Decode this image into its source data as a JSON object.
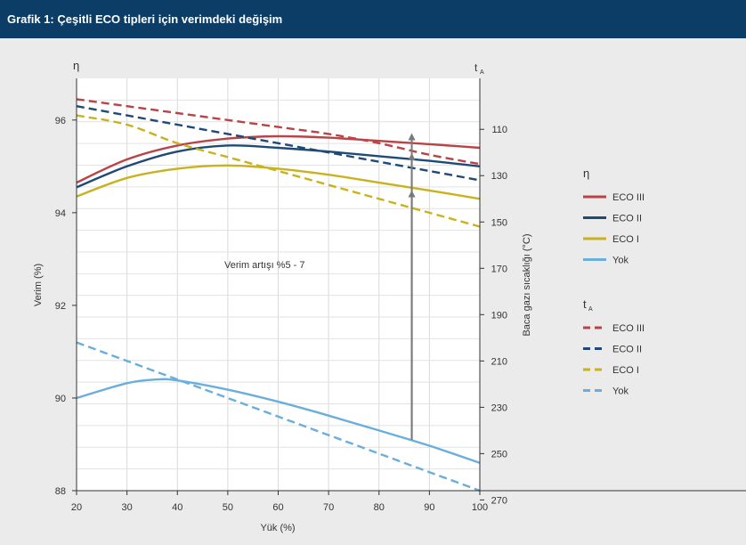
{
  "header": {
    "title": "Grafik 1: Çeşitli ECO tipleri için verimdeki değişim"
  },
  "chart_data": {
    "type": "line",
    "xlabel": "Yük (%)",
    "ylabel": "Verim (%)",
    "y2label": "Baca gazı sıcaklığı (°C)",
    "left_axis_symbol": "η",
    "right_axis_symbol": "t",
    "right_axis_symbol_sub": "A",
    "xlim": [
      20,
      100
    ],
    "ylim": [
      88,
      96.9
    ],
    "y2lim": [
      88.0,
      266.0
    ],
    "y2_reversed": true,
    "x_ticks": [
      20,
      30,
      40,
      50,
      60,
      70,
      80,
      90,
      100
    ],
    "y_ticks": [
      88,
      90,
      92,
      94,
      96
    ],
    "y2_ticks": [
      110,
      130,
      150,
      170,
      190,
      210,
      230,
      250,
      270
    ],
    "grid": true,
    "annotation": "Verim artışı %5 - 7",
    "annotation_x": 86.5,
    "annotation_arrows": [
      {
        "to": 94.45
      },
      {
        "to": 95.25
      },
      {
        "to": 95.68
      }
    ],
    "annotation_base": 89.1,
    "legend": {
      "placement": "right",
      "groups": [
        {
          "title": "η",
          "style": "solid",
          "entries": [
            "ECO III",
            "ECO II",
            "ECO I",
            "Yok"
          ]
        },
        {
          "title": "t",
          "title_sub": "A",
          "style": "dashed",
          "entries": [
            "ECO III",
            "ECO II",
            "ECO I",
            "Yok"
          ]
        }
      ]
    },
    "colors": {
      "ECO III": "#b84447",
      "ECO II": "#1f4a78",
      "ECO I": "#c8b21e",
      "Yok": "#6aaedb"
    },
    "series": [
      {
        "name": "ECO III",
        "axis": "left",
        "style": "solid",
        "x": [
          20,
          30,
          40,
          50,
          60,
          70,
          80,
          90,
          100
        ],
        "y": [
          94.65,
          95.15,
          95.45,
          95.6,
          95.65,
          95.62,
          95.55,
          95.48,
          95.4
        ]
      },
      {
        "name": "ECO II",
        "axis": "left",
        "style": "solid",
        "x": [
          20,
          30,
          40,
          50,
          60,
          70,
          80,
          90,
          100
        ],
        "y": [
          94.55,
          95.0,
          95.32,
          95.45,
          95.4,
          95.32,
          95.22,
          95.12,
          95.0
        ]
      },
      {
        "name": "ECO I",
        "axis": "left",
        "style": "solid",
        "x": [
          20,
          30,
          40,
          50,
          60,
          70,
          80,
          90,
          100
        ],
        "y": [
          94.35,
          94.75,
          94.95,
          95.02,
          94.95,
          94.82,
          94.65,
          94.48,
          94.3
        ]
      },
      {
        "name": "Yok",
        "axis": "left",
        "style": "solid",
        "x": [
          20,
          30,
          36,
          40,
          50,
          60,
          70,
          80,
          90,
          100
        ],
        "y": [
          90.0,
          90.32,
          90.4,
          90.38,
          90.18,
          89.92,
          89.62,
          89.3,
          88.97,
          88.6
        ]
      },
      {
        "name": "ECO III",
        "axis": "right",
        "style": "dashed",
        "x": [
          20,
          30,
          40,
          50,
          60,
          70,
          80,
          90,
          100
        ],
        "y": [
          97,
          100,
          103,
          106,
          109,
          112,
          116,
          121,
          125
        ]
      },
      {
        "name": "ECO II",
        "axis": "right",
        "style": "dashed",
        "x": [
          20,
          30,
          40,
          50,
          60,
          70,
          80,
          90,
          100
        ],
        "y": [
          100,
          104,
          108,
          112,
          116,
          120,
          124,
          128,
          132
        ]
      },
      {
        "name": "ECO I",
        "axis": "right",
        "style": "dashed",
        "x": [
          20,
          30,
          40,
          50,
          60,
          70,
          80,
          90,
          100
        ],
        "y": [
          104,
          108,
          116,
          122,
          128,
          134,
          140,
          146,
          152
        ]
      },
      {
        "name": "Yok",
        "axis": "right",
        "style": "dashed",
        "x": [
          20,
          30,
          40,
          50,
          60,
          70,
          80,
          90,
          100
        ],
        "y": [
          202,
          210,
          218,
          226,
          234,
          242,
          250,
          258,
          266
        ]
      }
    ]
  }
}
